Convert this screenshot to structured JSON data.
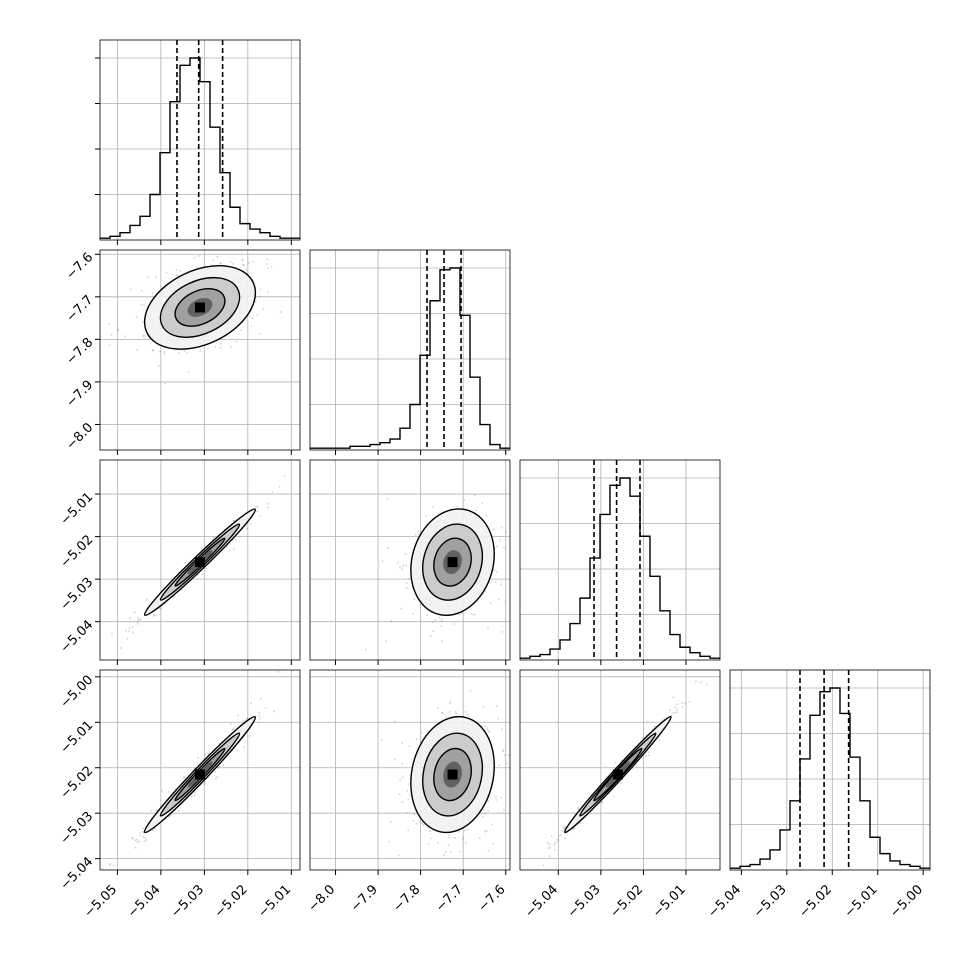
{
  "chart_data": {
    "type": "corner",
    "grid": true,
    "colors": {
      "line": "#000000",
      "grid": "#b0b0b0",
      "scatter": "#7f7f7f"
    },
    "parameters": [
      {
        "range": [
          -5.054,
          -5.008
        ],
        "mode": -5.031,
        "quantiles": [
          -5.0363,
          -5.0313,
          -5.0258
        ],
        "x_ticks": [
          "−5.05",
          "−5.04",
          "−5.03",
          "−5.02",
          "−5.01"
        ],
        "x_tick_values": [
          -5.05,
          -5.04,
          -5.03,
          -5.02,
          -5.01
        ]
      },
      {
        "range": [
          -8.06,
          -7.59
        ],
        "mode": -7.725,
        "quantiles": [
          -7.785,
          -7.745,
          -7.705
        ],
        "x_ticks": [
          "−8.0",
          "−7.9",
          "−7.8",
          "−7.7",
          "−7.6"
        ],
        "x_tick_values": [
          -8.0,
          -7.9,
          -7.8,
          -7.7,
          -7.6
        ],
        "y_ticks": [
          "−7.6",
          "−7.7",
          "−7.8",
          "−7.9",
          "−8.0"
        ],
        "y_tick_values": [
          -7.6,
          -7.7,
          -7.8,
          -7.9,
          -8.0
        ]
      },
      {
        "range": [
          -5.049,
          -5.002
        ],
        "mode": -5.026,
        "quantiles": [
          -5.0316,
          -5.0263,
          -5.0208
        ],
        "x_ticks": [
          "−5.04",
          "−5.03",
          "−5.02",
          "−5.01"
        ],
        "x_tick_values": [
          -5.04,
          -5.03,
          -5.02,
          -5.01
        ],
        "y_ticks": [
          "−5.01",
          "−5.02",
          "−5.03",
          "−5.04"
        ],
        "y_tick_values": [
          -5.01,
          -5.02,
          -5.03,
          -5.04
        ]
      },
      {
        "range": [
          -5.0425,
          -4.9985
        ],
        "mode": -5.0215,
        "quantiles": [
          -5.0271,
          -5.0218,
          -5.0164
        ],
        "x_ticks": [
          "−5.04",
          "−5.03",
          "−5.02",
          "−5.01",
          "−5.00"
        ],
        "x_tick_values": [
          -5.04,
          -5.03,
          -5.02,
          -5.01,
          -5.0
        ],
        "y_ticks": [
          "−5.00",
          "−5.01",
          "−5.02",
          "−5.03",
          "−5.04"
        ],
        "y_tick_values": [
          -5.0,
          -5.01,
          -5.02,
          -5.03,
          -5.04
        ]
      }
    ],
    "histograms": [
      {
        "counts": [
          1,
          2,
          4,
          8,
          13,
          25,
          48,
          76,
          96,
          100,
          87,
          62,
          37,
          18,
          9,
          6,
          4,
          2,
          1,
          1
        ]
      },
      {
        "counts": [
          1,
          1,
          1,
          1,
          2,
          2,
          3,
          4,
          6,
          12,
          25,
          52,
          82,
          99,
          100,
          74,
          40,
          14,
          3,
          1
        ]
      },
      {
        "counts": [
          1,
          2,
          3,
          6,
          11,
          20,
          34,
          56,
          80,
          96,
          100,
          90,
          68,
          46,
          27,
          14,
          7,
          4,
          2,
          1
        ]
      },
      {
        "counts": [
          1,
          2,
          3,
          6,
          11,
          22,
          38,
          61,
          85,
          98,
          100,
          86,
          62,
          38,
          18,
          9,
          5,
          3,
          2,
          1
        ]
      }
    ],
    "pairs": [
      {
        "x_param": 0,
        "y_param": 1,
        "correlation": 0.35,
        "spread_x": 0.0052,
        "spread_y": 0.04
      },
      {
        "x_param": 0,
        "y_param": 2,
        "correlation": 0.985,
        "spread_x": 0.0052,
        "spread_y": 0.0051
      },
      {
        "x_param": 1,
        "y_param": 2,
        "correlation": 0.15,
        "spread_x": 0.04,
        "spread_y": 0.0051
      },
      {
        "x_param": 0,
        "y_param": 3,
        "correlation": 0.985,
        "spread_x": 0.0052,
        "spread_y": 0.0052
      },
      {
        "x_param": 1,
        "y_param": 3,
        "correlation": 0.15,
        "spread_x": 0.04,
        "spread_y": 0.0052
      },
      {
        "x_param": 2,
        "y_param": 3,
        "correlation": 0.99,
        "spread_x": 0.0051,
        "spread_y": 0.0052
      }
    ]
  }
}
